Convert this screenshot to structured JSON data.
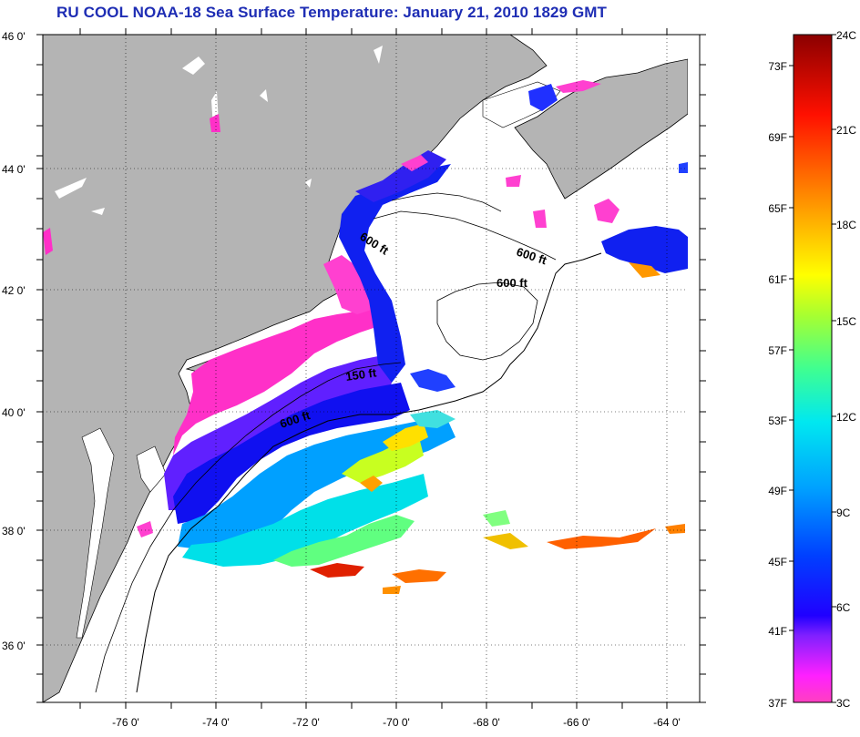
{
  "title": "RU COOL  NOAA-18  Sea Surface Temperature:  January 21, 2010 1829 GMT",
  "axes": {
    "lat_labels": [
      "46 0'",
      "44 0'",
      "42 0'",
      "40 0'",
      "38 0'",
      "36 0'"
    ],
    "lon_labels": [
      "-76 0'",
      "-74 0'",
      "-72 0'",
      "-70 0'",
      "-68 0'",
      "-66 0'",
      "-64 0'"
    ]
  },
  "contours": [
    {
      "label": "600 ft"
    },
    {
      "label": "600 ft"
    },
    {
      "label": "600 ft"
    },
    {
      "label": "150 ft"
    },
    {
      "label": "600 ft"
    }
  ],
  "colorbar": {
    "fahrenheit": [
      "73F",
      "69F",
      "65F",
      "61F",
      "57F",
      "53F",
      "49F",
      "45F",
      "41F",
      "37F"
    ],
    "celsius": [
      "24C",
      "21C",
      "18C",
      "15C",
      "12C",
      "9C",
      "6C",
      "3C"
    ]
  },
  "colors": {
    "land": "#b4b4b4",
    "title": "#1e2db4"
  }
}
